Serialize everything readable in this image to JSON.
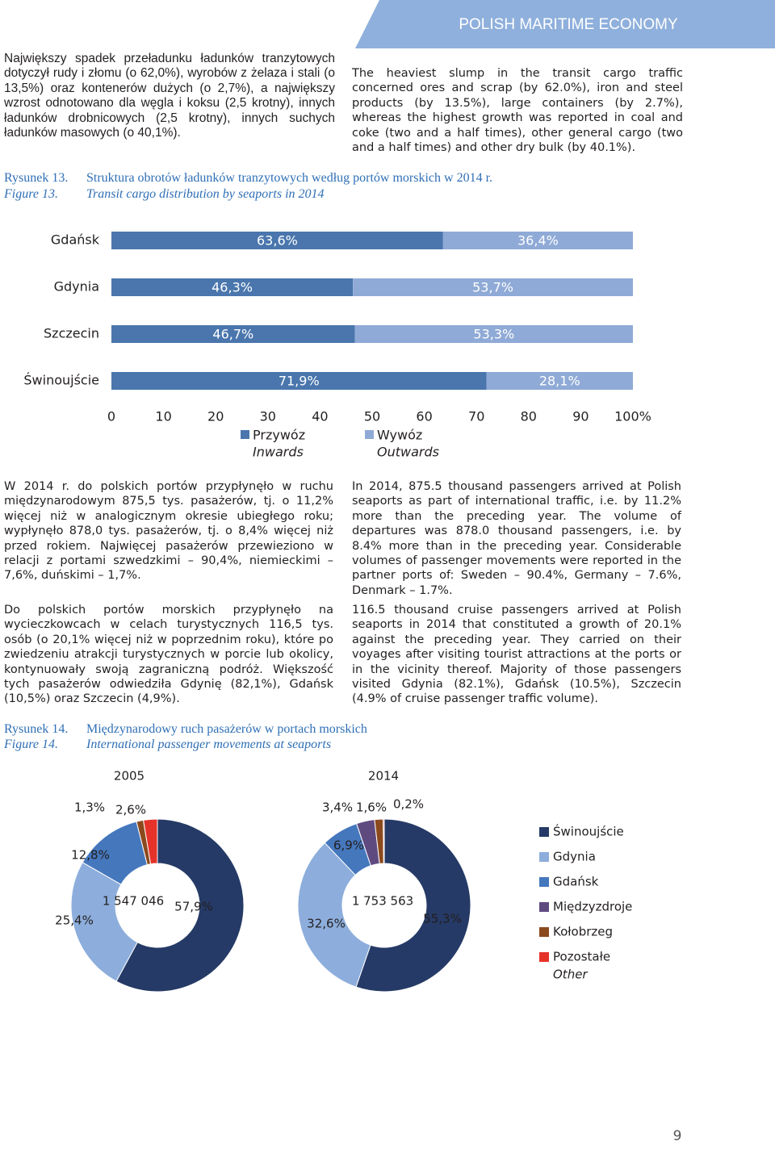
{
  "header": {
    "title": "POLISH MARITIME ECONOMY"
  },
  "text_top": {
    "pl": "Największy spadek przeładunku ładunków tranzytowych dotyczył rudy i złomu (o 62,0%), wyrobów z żelaza i stali (o 13,5%) oraz kontenerów dużych (o 2,7%), a największy wzrost odnotowano dla węgla i koksu (2,5 krotny), innych ładunków drobnicowych (2,5 krotny), innych suchych ładunków masowych (o 40,1%).",
    "en": "The heaviest slump in the transit cargo traffic concerned ores and scrap (by 62.0%), iron and steel products (by 13.5%), large containers (by 2.7%), whereas the highest growth was reported in coal and coke (two and a half times), other general cargo (two and a half times) and other dry bulk (by 40.1%)."
  },
  "figure13": {
    "label_pl": "Rysunek 13.",
    "caption_pl": "Struktura obrotów ładunków tranzytowych według portów morskich w 2014 r.",
    "label_en": "Figure 13.",
    "caption_en": "Transit cargo distribution by seaports in 2014"
  },
  "text_middle": {
    "pl": [
      "W 2014 r. do polskich portów przypłynęło w ruchu międzynarodowym 875,5 tys. pasażerów, tj. o 11,2% więcej niż w analogicznym okresie ubiegłego roku; wypłynęło 878,0 tys. pasażerów, tj. o 8,4% więcej niż przed rokiem. Najwięcej pasażerów przewieziono w relacji z portami szwedzkimi – 90,4%, niemieckimi – 7,6%, duńskimi – 1,7%.",
      "Do polskich portów morskich przypłynęło na wycieczkowcach w celach turystycznych 116,5 tys. osób (o 20,1% więcej niż w poprzednim roku), które po zwiedzeniu atrakcji turystycznych w porcie lub okolicy, kontynuowały swoją zagraniczną podróż. Większość tych pasażerów odwiedziła Gdynię (82,1%), Gdańsk (10,5%) oraz Szczecin (4,9%)."
    ],
    "en": [
      "In 2014, 875.5 thousand passengers arrived at Polish seaports as part of international traffic, i.e. by 11.2% more than the preceding year. The volume of departures was 878.0 thousand passengers, i.e. by 8.4% more than in the preceding year. Considerable volumes of passenger movements were reported in the partner ports of: Sweden – 90.4%, Germany – 7.6%, Denmark – 1.7%.",
      "116.5 thousand cruise passengers arrived at Polish seaports in 2014 that constituted a growth of 20.1% against the preceding year. They carried on their voyages after visiting tourist attractions at the ports or in the vicinity thereof. Majority of those passengers visited Gdynia (82.1%), Gdańsk (10.5%), Szczecin (4.9% of cruise passenger traffic volume)."
    ]
  },
  "figure14": {
    "label_pl": "Rysunek 14.",
    "caption_pl": "Międzynarodowy ruch pasażerów w portach morskich",
    "label_en": "Figure 14.",
    "caption_en": "International passenger movements at seaports"
  },
  "chart_data": [
    {
      "type": "bar",
      "orientation": "horizontal",
      "stacked": true,
      "categories": [
        "Gdańsk",
        "Gdynia",
        "Szczecin",
        "Świnoujście"
      ],
      "series": [
        {
          "name": "Przywóz",
          "name_en": "Inwards",
          "color": "#4a76ad",
          "values": [
            63.6,
            46.3,
            46.7,
            71.9
          ],
          "value_labels": [
            "63,6%",
            "46,3%",
            "46,7%",
            "71,9%"
          ]
        },
        {
          "name": "Wywóz",
          "name_en": "Outwards",
          "color": "#8faad6",
          "values": [
            36.4,
            53.7,
            53.3,
            28.1
          ],
          "value_labels": [
            "36,4%",
            "53,7%",
            "53,3%",
            "28,1%"
          ]
        }
      ],
      "xlim": [
        0,
        100
      ],
      "xticks": [
        0,
        10,
        20,
        30,
        40,
        50,
        60,
        70,
        80,
        90,
        {
          "value": 100,
          "label": "100%"
        }
      ]
    },
    {
      "type": "pie",
      "donut": true,
      "categories": [
        "Świnoujście",
        "Gdynia",
        "Gdańsk",
        "Międzyzdroje",
        "Kołobrzeg",
        "Pozostałe"
      ],
      "other_en": "Other",
      "colors": [
        "#253a66",
        "#8daedc",
        "#4577bd",
        "#5f4a80",
        "#8b4a1e",
        "#e6332a"
      ],
      "series": [
        {
          "name": "2005",
          "center_label": "1 547 046",
          "values": [
            57.9,
            25.4,
            12.8,
            null,
            1.3,
            2.6
          ],
          "value_labels": [
            "57,9%",
            "25,4%",
            "12,8%",
            null,
            "1,3%",
            "2,6%"
          ]
        },
        {
          "name": "2014",
          "center_label": "1 753 563",
          "values": [
            55.3,
            32.6,
            6.9,
            3.4,
            1.6,
            0.2
          ],
          "value_labels": [
            "55,3%",
            "32,6%",
            "6,9%",
            "3,4%",
            "1,6%",
            "0,2%"
          ]
        }
      ]
    }
  ],
  "page_number": "9"
}
